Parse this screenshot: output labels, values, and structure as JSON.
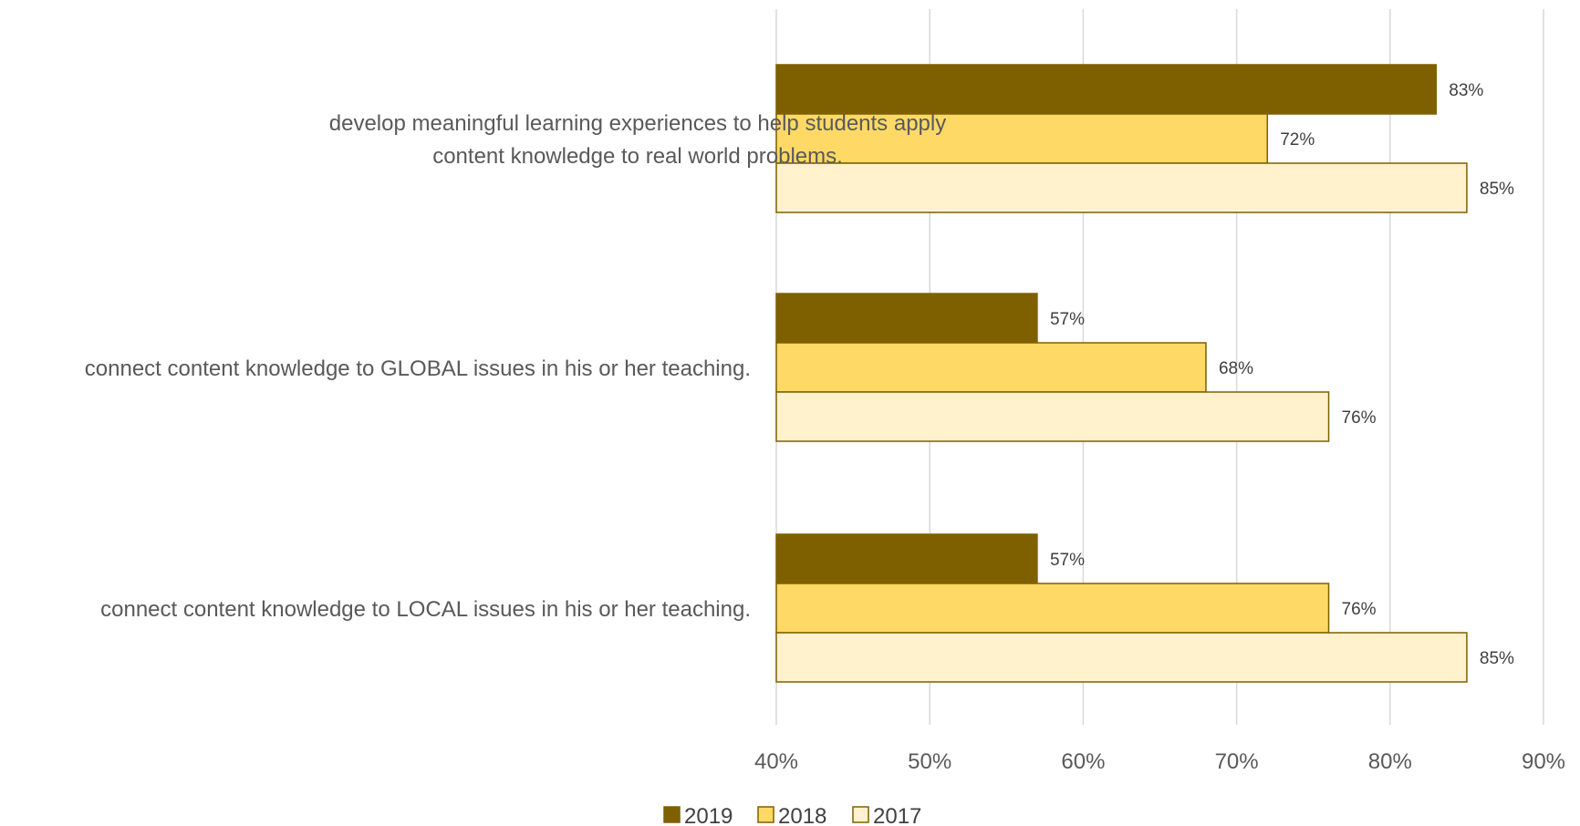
{
  "chart_data": {
    "type": "bar",
    "orientation": "horizontal",
    "categories": [
      [
        "develop meaningful learning experiences to help students apply",
        "content knowledge to real world problems."
      ],
      [
        "connect content knowledge to GLOBAL issues in his or her teaching."
      ],
      [
        "connect content knowledge to LOCAL issues in his or her teaching."
      ]
    ],
    "series": [
      {
        "name": "2019",
        "values": [
          83,
          57,
          57
        ],
        "color": "#7f6000",
        "border": "#7f6000"
      },
      {
        "name": "2018",
        "values": [
          72,
          68,
          76
        ],
        "color": "#ffd966",
        "border": "#7f6000"
      },
      {
        "name": "2017",
        "values": [
          85,
          76,
          85
        ],
        "color": "#fff2cc",
        "border": "#7f6000"
      }
    ],
    "xlim": [
      40,
      90
    ],
    "xticks": [
      40,
      50,
      60,
      70,
      80,
      90
    ],
    "value_suffix": "%",
    "grid": true,
    "legend_position": "bottom"
  }
}
